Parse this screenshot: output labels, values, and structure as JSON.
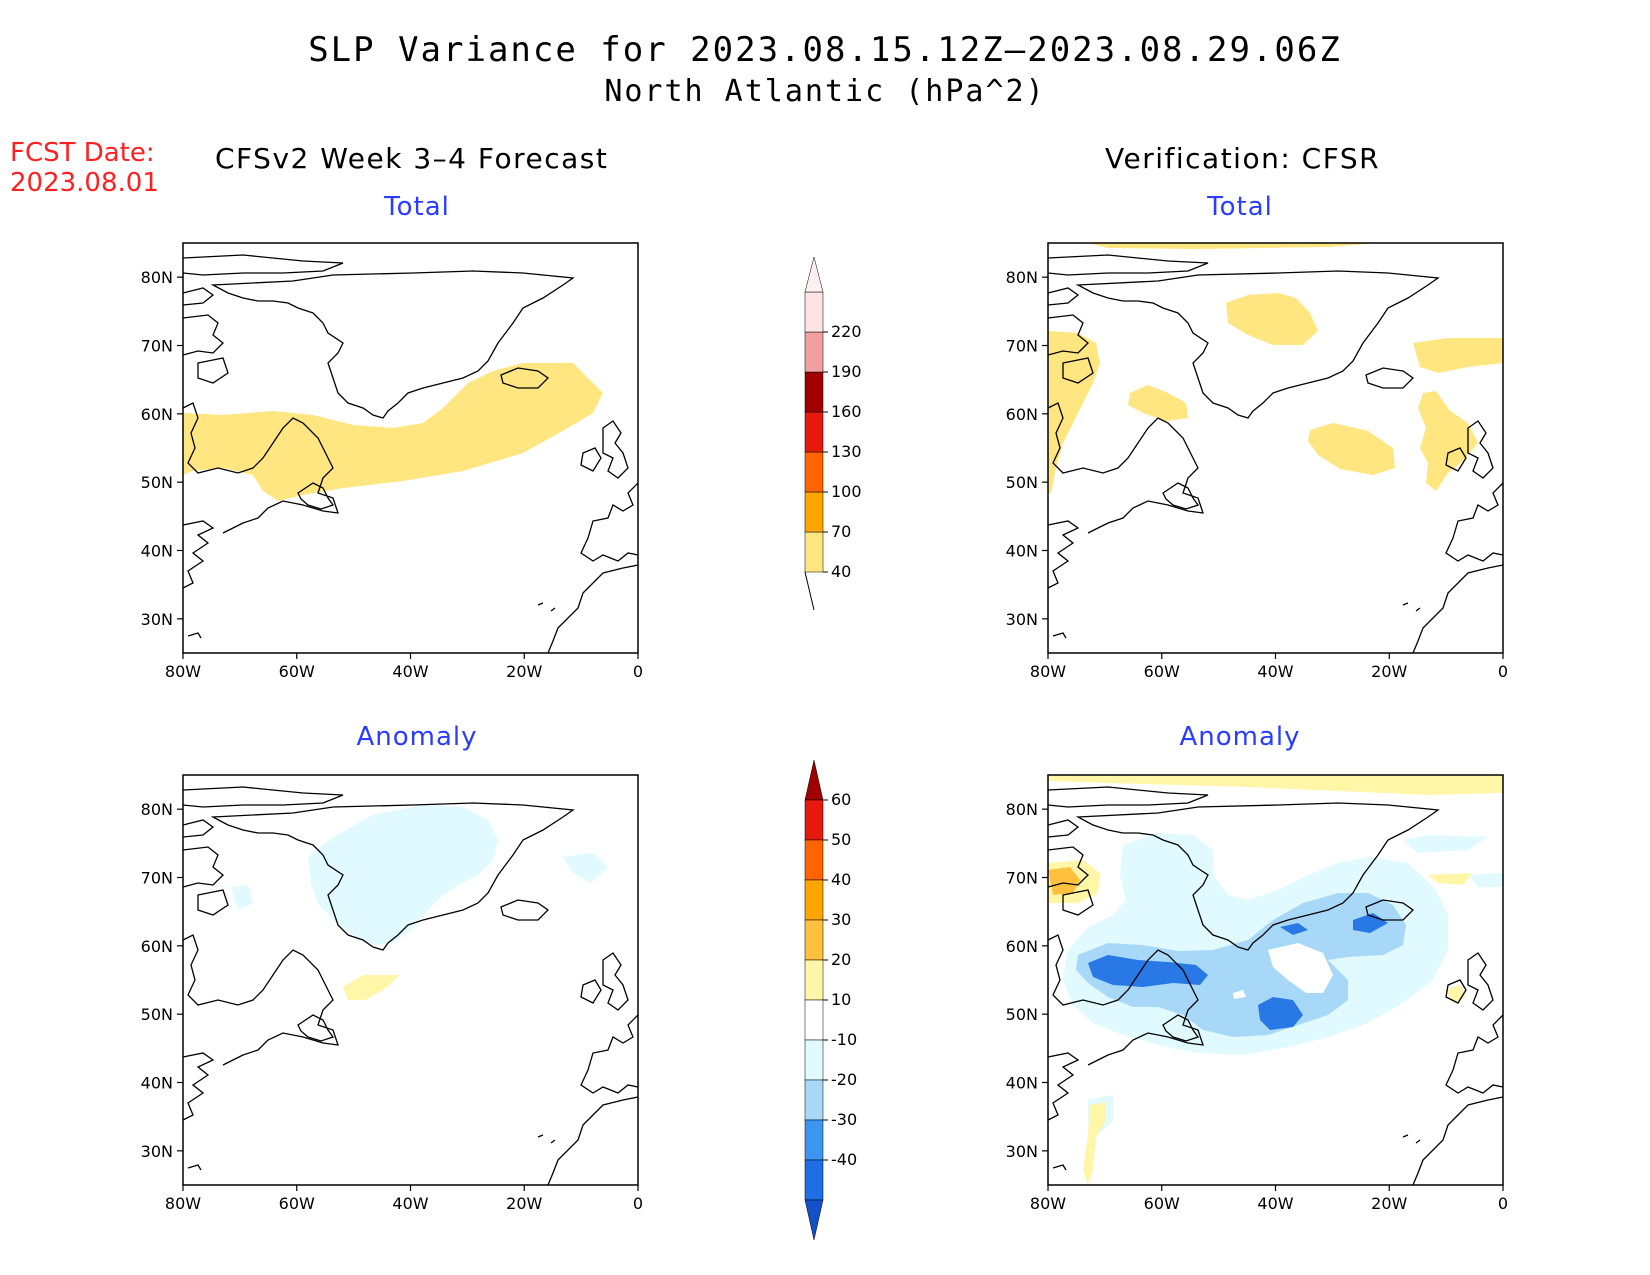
{
  "title": {
    "line1": "SLP Variance for 2023.08.15.12Z–2023.08.29.06Z",
    "line2": "North Atlantic (hPa^2)"
  },
  "forecast_date": {
    "label": "FCST Date:",
    "value": "2023.08.01"
  },
  "columns": {
    "left": "CFSv2 Week 3–4 Forecast",
    "right": "Verification: CFSR"
  },
  "panel_titles": {
    "fc_total": "Total",
    "fc_anom": "Anomaly",
    "ver_total": "Total",
    "ver_anom": "Anomaly"
  },
  "map_axes": {
    "lon_ticks": [
      "80W",
      "60W",
      "40W",
      "20W",
      "0"
    ],
    "lat_ticks": [
      "80N",
      "70N",
      "60N",
      "50N",
      "40N",
      "30N"
    ],
    "lon_range": [
      -80,
      0
    ],
    "lat_range": [
      25,
      85
    ]
  },
  "colorbars": {
    "total": {
      "levels": [
        "40",
        "70",
        "100",
        "130",
        "160",
        "190",
        "220"
      ],
      "colors": [
        "#ffe680",
        "#ffa500",
        "#ff6400",
        "#e6190f",
        "#a00000",
        "#f0a0a0",
        "#fde3e3"
      ]
    },
    "anomaly": {
      "levels": [
        "60",
        "50",
        "40",
        "30",
        "20",
        "10",
        "-10",
        "-20",
        "-30",
        "-40"
      ],
      "colors_top_to_bottom": [
        "#a00000",
        "#e6190f",
        "#ff6400",
        "#ffa500",
        "#ffc040",
        "#fff6a8",
        "#ffffff",
        "#e0faff",
        "#a8d8f8",
        "#3c96f0",
        "#1e6ee6",
        "#1450c8"
      ]
    }
  },
  "legend_colors": {
    "total_yellow": "#ffe680",
    "anom_light_blue": "#e0faff",
    "anom_mid_blue": "#a8d8f8",
    "anom_blue": "#2878e6",
    "anom_yellow": "#fff6a8",
    "anom_orange": "#ffc040"
  }
}
